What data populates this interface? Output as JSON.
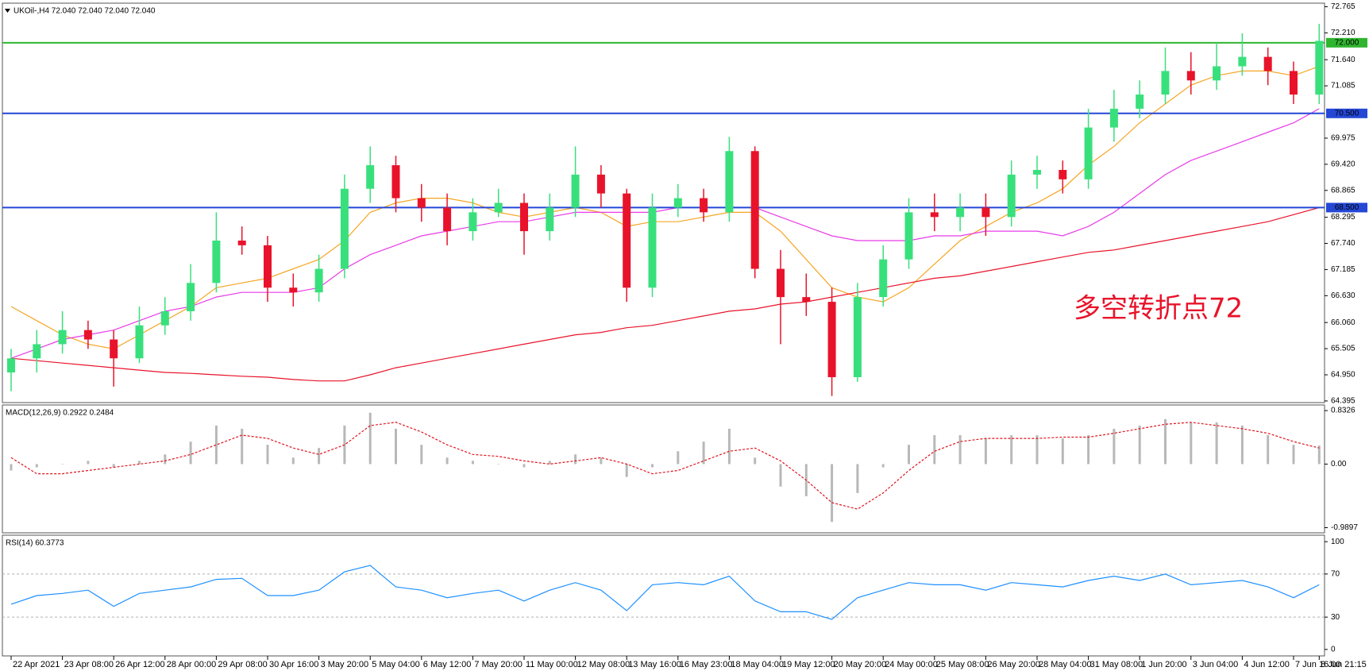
{
  "chart_data": [
    {
      "type": "candlestick",
      "title": "UKOil-,H4  72.040 72.040 72.040 72.040",
      "annotation": "多空转折点72",
      "up_color": "#38e07c",
      "down_color": "#e8132a",
      "open": [
        65.0,
        65.3,
        65.6,
        65.9,
        65.7,
        65.3,
        66.0,
        66.3,
        66.9,
        67.8,
        67.7,
        66.8,
        66.7,
        67.2,
        68.9,
        69.4,
        68.7,
        68.5,
        68.0,
        68.4,
        68.6,
        68.0,
        68.5,
        69.2,
        68.8,
        66.8,
        68.5,
        68.7,
        68.4,
        69.7,
        67.2,
        66.6,
        66.5,
        64.9,
        66.6,
        67.4,
        68.4,
        68.3,
        68.5,
        68.3,
        69.2,
        69.3,
        69.1,
        70.2,
        70.6,
        70.9,
        71.4,
        71.2,
        71.5,
        71.7,
        71.4,
        70.9
      ],
      "high": [
        65.5,
        65.9,
        66.3,
        66.1,
        65.9,
        66.4,
        66.6,
        67.3,
        68.4,
        68.1,
        67.9,
        67.1,
        67.5,
        69.2,
        69.8,
        69.6,
        69.0,
        68.8,
        68.7,
        68.9,
        68.8,
        68.8,
        69.8,
        69.4,
        68.9,
        68.8,
        69.0,
        68.9,
        70.0,
        69.8,
        67.6,
        67.1,
        66.8,
        66.9,
        67.7,
        68.7,
        68.8,
        68.8,
        68.8,
        69.5,
        69.6,
        69.5,
        70.6,
        71.0,
        71.2,
        71.9,
        71.8,
        72.0,
        72.2,
        71.9,
        71.6,
        72.4
      ],
      "low": [
        64.6,
        65.0,
        65.4,
        65.5,
        64.7,
        65.2,
        65.8,
        66.1,
        66.7,
        67.5,
        66.5,
        66.4,
        66.5,
        67.0,
        68.6,
        68.4,
        68.2,
        67.7,
        67.8,
        68.3,
        67.5,
        67.8,
        68.3,
        68.5,
        66.5,
        66.6,
        68.3,
        68.2,
        68.2,
        67.0,
        65.6,
        66.2,
        64.5,
        64.8,
        66.4,
        67.2,
        68.0,
        68.0,
        67.9,
        68.1,
        68.9,
        68.8,
        68.9,
        69.9,
        70.4,
        70.7,
        70.9,
        71.0,
        71.3,
        71.1,
        70.7,
        70.7
      ],
      "close": [
        65.3,
        65.6,
        65.9,
        65.7,
        65.3,
        66.0,
        66.3,
        66.9,
        67.8,
        67.7,
        66.8,
        66.7,
        67.2,
        68.9,
        69.4,
        68.7,
        68.5,
        68.0,
        68.4,
        68.6,
        68.0,
        68.5,
        69.2,
        68.8,
        66.8,
        68.5,
        68.7,
        68.4,
        69.7,
        67.2,
        66.6,
        66.5,
        64.9,
        66.6,
        67.4,
        68.4,
        68.3,
        68.5,
        68.3,
        69.2,
        69.3,
        69.1,
        70.2,
        70.6,
        70.9,
        71.4,
        71.2,
        71.5,
        71.7,
        71.4,
        70.9,
        72.04
      ],
      "series": [
        {
          "color": "#f5a623",
          "values": [
            66.4,
            66.1,
            65.8,
            65.6,
            65.5,
            65.8,
            66.1,
            66.4,
            66.8,
            66.9,
            67.0,
            67.2,
            67.4,
            67.8,
            68.4,
            68.6,
            68.7,
            68.7,
            68.6,
            68.4,
            68.3,
            68.4,
            68.5,
            68.4,
            68.1,
            68.2,
            68.2,
            68.3,
            68.4,
            68.4,
            68.0,
            67.4,
            66.8,
            66.6,
            66.5,
            66.8,
            67.3,
            67.8,
            68.1,
            68.4,
            68.6,
            68.9,
            69.4,
            69.8,
            70.3,
            70.7,
            71.1,
            71.3,
            71.4,
            71.4,
            71.3,
            71.5
          ]
        },
        {
          "color": "#e83ce8",
          "values": [
            65.3,
            65.5,
            65.7,
            65.8,
            65.9,
            66.1,
            66.3,
            66.4,
            66.6,
            66.7,
            66.7,
            66.7,
            66.8,
            67.2,
            67.5,
            67.7,
            67.9,
            68.0,
            68.1,
            68.2,
            68.2,
            68.3,
            68.4,
            68.4,
            68.4,
            68.4,
            68.5,
            68.5,
            68.5,
            68.5,
            68.3,
            68.1,
            67.9,
            67.8,
            67.8,
            67.8,
            67.9,
            67.9,
            68.0,
            68.0,
            68.0,
            67.9,
            68.1,
            68.4,
            68.8,
            69.2,
            69.5,
            69.7,
            69.9,
            70.1,
            70.3,
            70.6
          ]
        },
        {
          "color": "#e8132a",
          "values": [
            65.3,
            65.25,
            65.2,
            65.15,
            65.1,
            65.05,
            65.0,
            64.98,
            64.95,
            64.92,
            64.9,
            64.85,
            64.82,
            64.82,
            64.95,
            65.1,
            65.2,
            65.3,
            65.4,
            65.5,
            65.6,
            65.7,
            65.8,
            65.85,
            65.95,
            66.0,
            66.1,
            66.2,
            66.3,
            66.35,
            66.45,
            66.5,
            66.6,
            66.7,
            66.8,
            66.9,
            67.0,
            67.05,
            67.15,
            67.25,
            67.35,
            67.45,
            67.55,
            67.6,
            67.7,
            67.8,
            67.9,
            68.0,
            68.1,
            68.2,
            68.35,
            68.5
          ]
        }
      ],
      "hlines": [
        {
          "value": 72,
          "label": "72.000",
          "color": "#2fb52f"
        },
        {
          "value": 70.5,
          "label": "70.500",
          "color": "#2447d6"
        },
        {
          "value": 68.5,
          "label": "68.500",
          "color": "#2447d6"
        }
      ],
      "ylim": [
        64.36,
        72.84
      ],
      "yticks": [
        72.765,
        {
          "value": 72.21,
          "label": "72.210"
        },
        {
          "value": 71.64,
          "label": "71.640"
        },
        71.085,
        69.975,
        {
          "value": 69.42,
          "label": "69.420"
        },
        68.865,
        68.295,
        {
          "value": 67.74,
          "label": "67.740"
        },
        67.185,
        {
          "value": 66.63,
          "label": "66.630"
        },
        {
          "value": 66.06,
          "label": "66.060"
        },
        65.505,
        {
          "value": 64.95,
          "label": "64.950"
        },
        64.395
      ]
    },
    {
      "type": "macd",
      "title": "MACD(12,26,9) 0.2922 0.2484",
      "series": [
        {
          "kind": "histogram",
          "color": "#b8b8b8",
          "values": [
            -0.1,
            -0.05,
            0.0,
            0.05,
            -0.05,
            0.05,
            0.15,
            0.35,
            0.6,
            0.55,
            0.3,
            0.1,
            0.25,
            0.6,
            0.8,
            0.55,
            0.3,
            0.1,
            0.05,
            0.0,
            -0.05,
            0.05,
            0.15,
            0.1,
            -0.2,
            -0.05,
            0.2,
            0.35,
            0.55,
            0.1,
            -0.35,
            -0.5,
            -0.9,
            -0.45,
            -0.05,
            0.3,
            0.45,
            0.45,
            0.4,
            0.45,
            0.45,
            0.4,
            0.45,
            0.55,
            0.6,
            0.7,
            0.65,
            0.65,
            0.6,
            0.45,
            0.3,
            0.29
          ]
        },
        {
          "kind": "signal",
          "color": "#e0141e",
          "values": [
            0.1,
            -0.15,
            -0.15,
            -0.1,
            -0.05,
            0.0,
            0.05,
            0.15,
            0.3,
            0.45,
            0.4,
            0.25,
            0.15,
            0.3,
            0.6,
            0.65,
            0.5,
            0.3,
            0.15,
            0.12,
            0.05,
            0.0,
            0.05,
            0.1,
            0.0,
            -0.15,
            -0.1,
            0.05,
            0.2,
            0.25,
            0.05,
            -0.25,
            -0.6,
            -0.7,
            -0.45,
            -0.1,
            0.2,
            0.35,
            0.4,
            0.4,
            0.4,
            0.42,
            0.42,
            0.48,
            0.55,
            0.62,
            0.65,
            0.6,
            0.55,
            0.48,
            0.35,
            0.25
          ]
        }
      ],
      "ylim": [
        -1.07,
        0.92
      ],
      "yticks": [
        0.8326,
        {
          "value": 0,
          "label": "0.00"
        },
        -0.9897
      ]
    },
    {
      "type": "line",
      "title": "RSI(14) 60.3773",
      "series": [
        {
          "color": "#1e90ff",
          "values": [
            42,
            50,
            52,
            55,
            40,
            52,
            55,
            58,
            65,
            66,
            50,
            50,
            55,
            72,
            78,
            58,
            55,
            48,
            52,
            55,
            45,
            55,
            62,
            55,
            36,
            60,
            62,
            60,
            68,
            45,
            35,
            35,
            28,
            48,
            55,
            62,
            60,
            60,
            55,
            62,
            60,
            58,
            64,
            68,
            64,
            70,
            60,
            62,
            64,
            58,
            48,
            60
          ]
        }
      ],
      "levels": [
        70,
        30
      ],
      "ylim": [
        -6,
        106
      ],
      "yticks": [
        100,
        70,
        30,
        0
      ],
      "xticks": [
        {
          "value": 0,
          "label": "22 Apr 2021"
        },
        {
          "value": 2,
          "label": "23 Apr 08:00"
        },
        {
          "value": 4,
          "label": "26 Apr 12:00"
        },
        {
          "value": 6,
          "label": "28 Apr 00:00"
        },
        {
          "value": 8,
          "label": "29 Apr 08:00"
        },
        {
          "value": 10,
          "label": "30 Apr 16:00"
        },
        {
          "value": 12,
          "label": "3 May 20:00"
        },
        {
          "value": 14,
          "label": "5 May 04:00"
        },
        {
          "value": 16,
          "label": "6 May 12:00"
        },
        {
          "value": 18,
          "label": "7 May 20:00"
        },
        {
          "value": 20,
          "label": "11 May 00:00"
        },
        {
          "value": 22,
          "label": "12 May 08:00"
        },
        {
          "value": 24,
          "label": "13 May 16:00"
        },
        {
          "value": 26,
          "label": "16 May 23:00"
        },
        {
          "value": 28,
          "label": "18 May 04:00"
        },
        {
          "value": 30,
          "label": "19 May 12:00"
        },
        {
          "value": 32,
          "label": "20 May 20:00"
        },
        {
          "value": 34,
          "label": "24 May 00:00"
        },
        {
          "value": 36,
          "label": "25 May 08:00"
        },
        {
          "value": 38,
          "label": "26 May 20:00"
        },
        {
          "value": 40,
          "label": "28 May 04:00"
        },
        {
          "value": 42,
          "label": "31 May 08:00"
        },
        {
          "value": 44,
          "label": "1 Jun 20:00"
        },
        {
          "value": 46,
          "label": "3 Jun 04:00"
        },
        {
          "value": 48,
          "label": "4 Jun 12:00"
        },
        {
          "value": 50,
          "label": "7 Jun 16:00"
        },
        {
          "value": 51,
          "label": "8 Jun 21:15"
        }
      ]
    }
  ]
}
